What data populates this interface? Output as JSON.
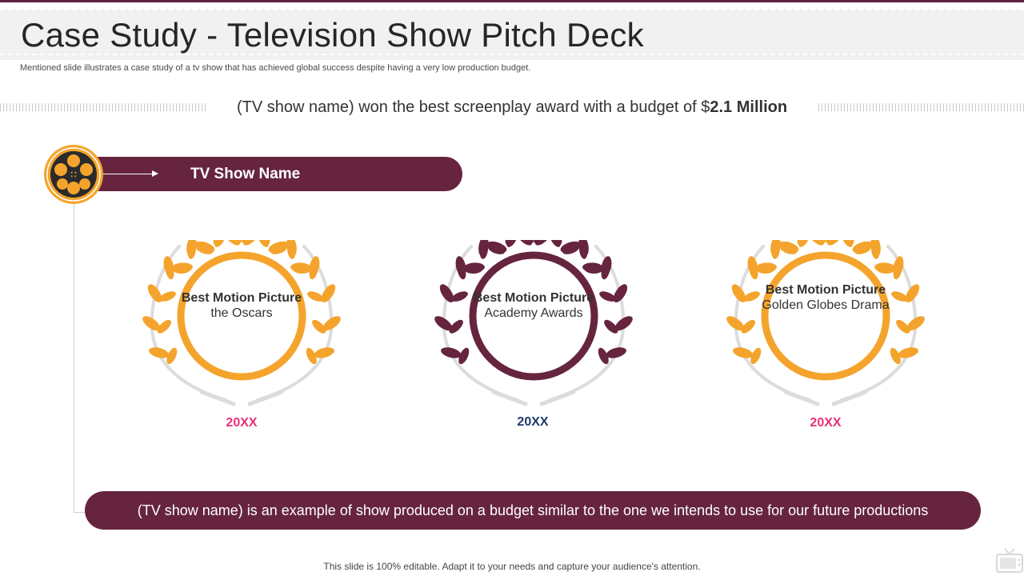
{
  "slide": {
    "title": "Case Study - Television Show Pitch Deck",
    "subtitle": "Mentioned slide illustrates a case study of a tv  show that has achieved global success despite having a very  low production budget.",
    "headline_pre": "(TV show name) won the best screenplay award with a budget  of $",
    "headline_bold": "2.1 Million",
    "show_name": "TV Show Name",
    "awards": [
      {
        "title": "Best Motion Picture",
        "subtitle": "the Oscars",
        "year": "20XX",
        "wreath_color": "#f4a42c",
        "year_color": "#e8307a"
      },
      {
        "title": "Best Motion Picture",
        "subtitle": "Academy Awards",
        "year": "20XX",
        "wreath_color": "#66243f",
        "year_color": "#1f3b6b"
      },
      {
        "title": "Best Motion Picture",
        "subtitle": "Golden Globes Drama",
        "year": "20XX",
        "wreath_color": "#f4a42c",
        "year_color": "#e8307a"
      }
    ],
    "bottom_text": "(TV show name) is an example of show produced on a budget similar to the one we intends to use for our future productions",
    "footer": "This slide is 100% editable. Adapt it to your needs and capture your audience's attention."
  },
  "colors": {
    "brand": "#66243f",
    "accent": "#f4a42c"
  },
  "icons": [
    "film-reel-icon",
    "arrow-right-icon",
    "laurel-wreath-icon",
    "tv-icon"
  ]
}
